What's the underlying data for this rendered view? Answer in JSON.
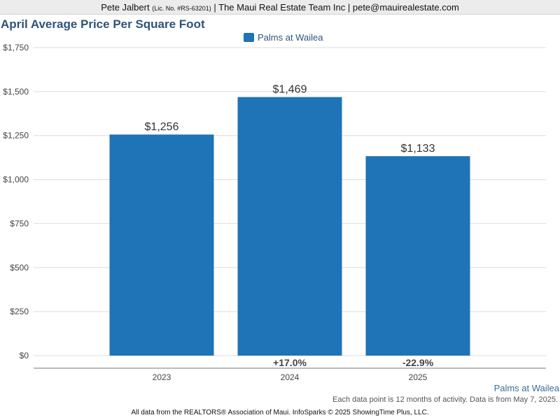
{
  "header": {
    "agent_name": "Pete Jalbert",
    "license": "(Lic. No. #RS-63201)",
    "rest": "| The Maui Real Estate Team Inc | pete@mauirealestate.com"
  },
  "chart_data": {
    "type": "bar",
    "title": "April Average Price Per Square Foot",
    "xlabel": "",
    "ylabel": "",
    "ylim": [
      0,
      1750
    ],
    "yticks": [
      0,
      250,
      500,
      750,
      1000,
      1250,
      1500,
      1750
    ],
    "ytick_labels": [
      "$0",
      "$250",
      "$500",
      "$750",
      "$1,000",
      "$1,250",
      "$1,500",
      "$1,750"
    ],
    "categories": [
      "2023",
      "2024",
      "2025"
    ],
    "series": [
      {
        "name": "Palms at Wailea",
        "values": [
          1256,
          1469,
          1133
        ],
        "value_labels": [
          "$1,256",
          "$1,469",
          "$1,133"
        ],
        "color": "#1f73b7"
      }
    ],
    "change_labels": [
      "",
      "+17.0%",
      "-22.9%"
    ],
    "grid": true,
    "legend_position": "top-center"
  },
  "series_caption": "Palms at Wailea",
  "note": "Each data point is 12 months of activity. Data is from May 7, 2025.",
  "footer": "All data from the REALTORS® Association of Maui. InfoSparks © 2025 ShowingTime Plus, LLC."
}
